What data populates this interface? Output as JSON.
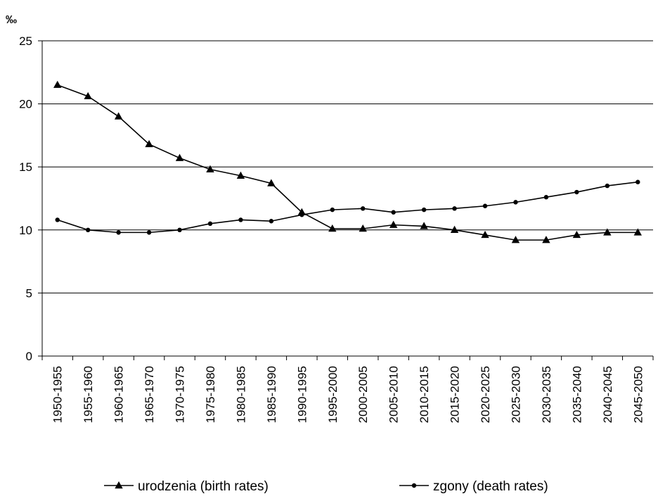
{
  "chart_data": {
    "type": "line",
    "title": "",
    "xlabel": "",
    "ylabel": "",
    "unit_label": "‰",
    "ylim": [
      0,
      25
    ],
    "yticks": [
      0,
      5,
      10,
      15,
      20,
      25
    ],
    "grid": true,
    "legend_position": "bottom",
    "categories": [
      "1950-1955",
      "1955-1960",
      "1960-1965",
      "1965-1970",
      "1970-1975",
      "1975-1980",
      "1980-1985",
      "1985-1990",
      "1990-1995",
      "1995-2000",
      "2000-2005",
      "2005-2010",
      "2010-2015",
      "2015-2020",
      "2020-2025",
      "2025-2030",
      "2030-2035",
      "2035-2040",
      "2040-2045",
      "2045-2050"
    ],
    "series": [
      {
        "name": "urodzenia (birth rates)",
        "marker": "triangle",
        "color": "#000000",
        "values": [
          21.5,
          20.6,
          19.0,
          16.8,
          15.7,
          14.8,
          14.3,
          13.7,
          11.4,
          10.1,
          10.1,
          10.4,
          10.3,
          10.0,
          9.6,
          9.2,
          9.2,
          9.6,
          9.8,
          9.8
        ]
      },
      {
        "name": "zgony (death rates)",
        "marker": "circle",
        "color": "#000000",
        "values": [
          10.8,
          10.0,
          9.8,
          9.8,
          10.0,
          10.5,
          10.8,
          10.7,
          11.2,
          11.6,
          11.7,
          11.4,
          11.6,
          11.7,
          11.9,
          12.2,
          12.6,
          13.0,
          13.5,
          13.8
        ]
      }
    ]
  }
}
